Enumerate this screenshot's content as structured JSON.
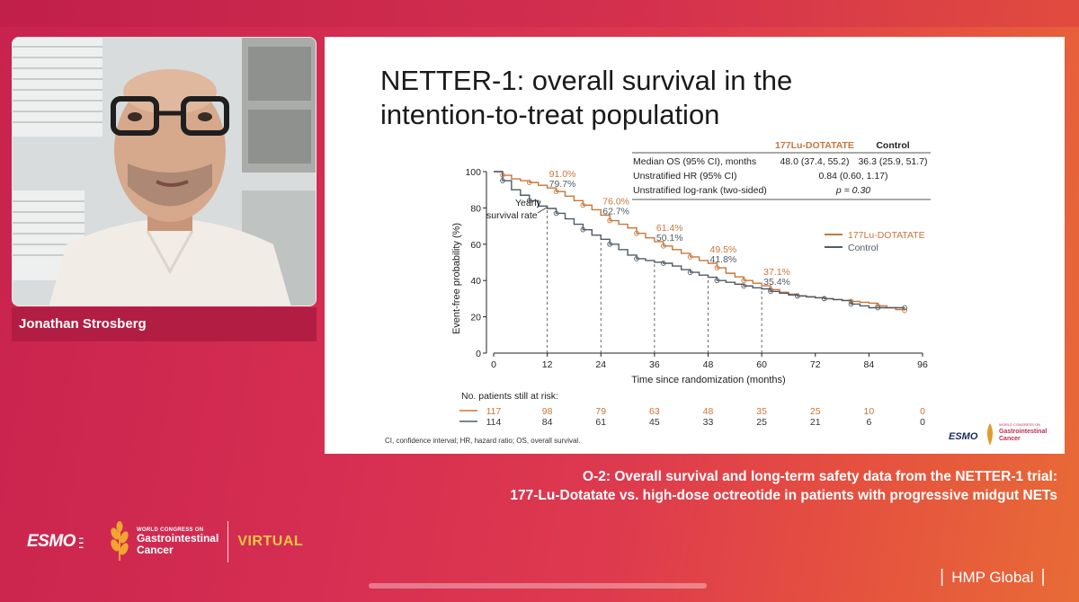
{
  "speaker": {
    "name": "Jonathan Strosberg"
  },
  "slide": {
    "title": "NETTER-1: overall survival in the intention-to-treat population",
    "footnote": "CI, confidence interval; HR, hazard ratio; OS, overall survival.",
    "table": {
      "col1": "177Lu-DOTATATE",
      "col2": "Control",
      "rows": [
        {
          "label": "Median OS (95% CI), months",
          "v1": "48.0 (37.4, 55.2)",
          "v2": "36.3 (25.9, 51.7)"
        },
        {
          "label": "Unstratified HR (95% CI)",
          "v": "0.84 (0.60, 1.17)"
        },
        {
          "label": "Unstratified log-rank (two-sided)",
          "v": "p = 0.30"
        }
      ]
    },
    "logo_text": {
      "esmo": "ESMO",
      "congress_small": "WORLD CONGRESS ON",
      "congress_big1": "Gastrointestinal",
      "congress_big2": "Cancer"
    }
  },
  "chart_data": {
    "type": "line",
    "xlabel": "Time since randomization (months)",
    "ylabel": "Event-free probability (%)",
    "xlim": [
      0,
      96
    ],
    "ylim": [
      0,
      100
    ],
    "x_ticks": [
      0,
      12,
      24,
      36,
      48,
      60,
      72,
      84,
      96
    ],
    "y_ticks": [
      0,
      20,
      40,
      60,
      80,
      100
    ],
    "annotation": "Yearly survival rate",
    "legend_position": "right",
    "series": [
      {
        "name": "177Lu-DOTATATE",
        "color": "#c8763a",
        "x": [
          0,
          2,
          4,
          6,
          8,
          10,
          12,
          14,
          16,
          18,
          20,
          22,
          24,
          26,
          28,
          30,
          32,
          34,
          36,
          38,
          40,
          42,
          44,
          46,
          48,
          50,
          52,
          54,
          56,
          58,
          60,
          62,
          64,
          66,
          68,
          70,
          72,
          74,
          76,
          78,
          80,
          82,
          84,
          86,
          88,
          90,
          92
        ],
        "y": [
          100,
          98,
          96,
          95,
          94,
          92.5,
          91,
          89,
          86.5,
          84,
          81.5,
          79,
          76,
          73,
          71,
          69,
          66,
          63.5,
          61.4,
          59,
          57,
          55,
          53,
          51,
          49.5,
          47,
          44,
          42,
          40,
          38.5,
          37.1,
          35,
          33.5,
          32.5,
          31.5,
          31,
          30.5,
          30,
          29.5,
          29,
          28.5,
          28,
          27.5,
          26,
          25,
          24,
          23.5
        ]
      },
      {
        "name": "Control",
        "color": "#4f5b66",
        "x": [
          0,
          2,
          4,
          6,
          8,
          10,
          12,
          14,
          16,
          18,
          20,
          22,
          24,
          26,
          28,
          30,
          32,
          34,
          36,
          38,
          40,
          42,
          44,
          46,
          48,
          50,
          52,
          54,
          56,
          58,
          60,
          62,
          64,
          66,
          68,
          70,
          72,
          74,
          76,
          78,
          80,
          82,
          84,
          86,
          88,
          90,
          92
        ],
        "y": [
          100,
          95,
          90,
          87,
          84,
          81,
          79.7,
          77,
          74,
          71,
          68,
          65,
          62.7,
          60,
          57,
          54,
          52,
          51,
          50.1,
          49.5,
          48,
          46,
          44.5,
          43,
          41.8,
          40,
          39,
          38,
          37,
          36,
          35.4,
          34,
          33,
          32,
          31.5,
          31,
          30.5,
          30,
          29.5,
          29,
          27,
          26,
          25,
          25,
          25,
          25,
          25
        ]
      }
    ],
    "yearly_labels": [
      {
        "x": 12,
        "lu": "91.0%",
        "ctrl": "79.7%"
      },
      {
        "x": 24,
        "lu": "76.0%",
        "ctrl": "62.7%"
      },
      {
        "x": 36,
        "lu": "61.4%",
        "ctrl": "50.1%"
      },
      {
        "x": 48,
        "lu": "49.5%",
        "ctrl": "41.8%"
      },
      {
        "x": 60,
        "lu": "37.1%",
        "ctrl": "35.4%"
      }
    ],
    "risk_table": {
      "title": "No. patients still at risk:",
      "lu": [
        "117",
        "98",
        "79",
        "63",
        "48",
        "35",
        "25",
        "10",
        "0"
      ],
      "ctrl": [
        "114",
        "84",
        "61",
        "45",
        "33",
        "25",
        "21",
        "6",
        "0"
      ]
    }
  },
  "caption": {
    "line1": "O-2: Overall survival and long-term safety data from the NETTER-1 trial:",
    "line2": "177-Lu-Dotatate vs. high-dose octreotide in patients with progressive midgut NETs"
  },
  "branding": {
    "esmo": "ESMO",
    "congress_small": "WORLD CONGRESS ON",
    "congress_big1": "Gastrointestinal",
    "congress_big2": "Cancer",
    "virtual": "VIRTUAL",
    "hmp": "HMP Global"
  }
}
